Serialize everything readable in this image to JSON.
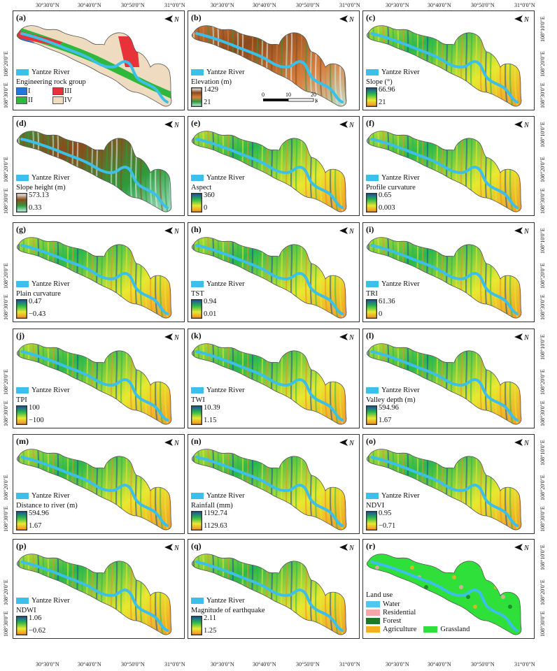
{
  "axes": {
    "top_labels": [
      "30°30'0\"N",
      "30°40'0\"N",
      "30°50'0\"N",
      "31°0'0\"N"
    ],
    "left_labels": [
      "108°10'0\"E",
      "108°20'0\"E",
      "108°30'0\"E"
    ],
    "bottom_labels": [
      "30°30'0\"N",
      "30°40'0\"N",
      "30°50'0\"N",
      "31°0'0\"N"
    ]
  },
  "river_label": "Yantze River",
  "north_label": "N",
  "colors": {
    "river": "#3cc0ea",
    "panel_border": "#333333"
  },
  "panels": [
    {
      "id": "a",
      "label": "(a)",
      "title": "Engineering rock group",
      "type": "rock",
      "classes": [
        {
          "name": "I",
          "color": "#1f78e0"
        },
        {
          "name": "III",
          "color": "#e8323a"
        },
        {
          "name": "II",
          "color": "#2fb83c"
        },
        {
          "name": "IV",
          "color": "#efdcc0"
        }
      ]
    },
    {
      "id": "b",
      "label": "(b)",
      "title": "Elevation (m)",
      "max": "1429",
      "min": "21",
      "type": "ramp",
      "ramp": [
        "#f4f4f4",
        "#8b4a1a",
        "#d88040",
        "#2e9a3c",
        "#bff2e6"
      ],
      "scale": {
        "ticks": [
          "0",
          "10",
          "20"
        ],
        "unit": "Km"
      }
    },
    {
      "id": "c",
      "label": "(c)",
      "title": "Slope (°)",
      "max": "66.96",
      "min": "21",
      "type": "ramp",
      "ramp": [
        "#1a4fa0",
        "#2bb84b",
        "#e8e830",
        "#f58a25"
      ]
    },
    {
      "id": "d",
      "label": "(d)",
      "title": "Slope height (m)",
      "max": "573.13",
      "min": "0.33",
      "type": "ramp",
      "ramp": [
        "#f2f2f2",
        "#8b4a1a",
        "#2e9a3c",
        "#bff2e6"
      ]
    },
    {
      "id": "e",
      "label": "(e)",
      "title": "Aspect",
      "max": "360",
      "min": "0",
      "type": "ramp",
      "ramp": [
        "#1a4fa0",
        "#2bb84b",
        "#e8e830",
        "#f58a25"
      ]
    },
    {
      "id": "f",
      "label": "(f)",
      "title": "Profile curvature",
      "max": "0.65",
      "min": "0.003",
      "type": "ramp",
      "ramp": [
        "#1a4fa0",
        "#2bb84b",
        "#e8e830",
        "#f58a25"
      ]
    },
    {
      "id": "g",
      "label": "(g)",
      "title": "Plain curvature",
      "max": "0.47",
      "min": "−0.43",
      "type": "ramp",
      "ramp": [
        "#1a4fa0",
        "#2bb84b",
        "#e8e830",
        "#f58a25"
      ]
    },
    {
      "id": "h",
      "label": "(h)",
      "title": "TST",
      "max": "0.94",
      "min": "0.01",
      "type": "ramp",
      "ramp": [
        "#1a4fa0",
        "#2bb84b",
        "#e8e830",
        "#f58a25"
      ]
    },
    {
      "id": "i",
      "label": "(i)",
      "title": "TRI",
      "max": "61.36",
      "min": "0",
      "type": "ramp",
      "ramp": [
        "#1a4fa0",
        "#2bb84b",
        "#e8e830",
        "#f58a25"
      ]
    },
    {
      "id": "j",
      "label": "(j)",
      "title": "TPI",
      "max": "100",
      "min": "−100",
      "type": "ramp",
      "ramp": [
        "#1a4fa0",
        "#2bb84b",
        "#e8e830",
        "#f58a25"
      ]
    },
    {
      "id": "k",
      "label": "(k)",
      "title": "TWI",
      "max": "10.39",
      "min": "1.15",
      "type": "ramp",
      "ramp": [
        "#1a4fa0",
        "#2bb84b",
        "#e8e830",
        "#f58a25"
      ]
    },
    {
      "id": "l",
      "label": "(l)",
      "title": "Valley depth (m)",
      "max": "594.96",
      "min": "1.67",
      "type": "ramp",
      "ramp": [
        "#1a4fa0",
        "#2bb84b",
        "#e8e830",
        "#f58a25"
      ]
    },
    {
      "id": "m",
      "label": "(m)",
      "title": "Distance to river (m)",
      "max": "594.96",
      "min": "1.67",
      "type": "ramp",
      "ramp": [
        "#1a4fa0",
        "#2bb84b",
        "#e8e830",
        "#f58a25"
      ]
    },
    {
      "id": "n",
      "label": "(n)",
      "title": "Rainfall (mm)",
      "max": "1192.74",
      "min": "1129.63",
      "type": "ramp",
      "ramp": [
        "#1a4fa0",
        "#2bb84b",
        "#e8e830",
        "#f58a25"
      ]
    },
    {
      "id": "o",
      "label": "(o)",
      "title": "NDVI",
      "max": "0.95",
      "min": "−0.71",
      "type": "ramp",
      "ramp": [
        "#1a4fa0",
        "#2bb84b",
        "#e8e830",
        "#f58a25"
      ]
    },
    {
      "id": "p",
      "label": "(p)",
      "title": "NDWI",
      "max": "1.06",
      "min": "−0.62",
      "type": "ramp",
      "ramp": [
        "#1a4fa0",
        "#2bb84b",
        "#e8e830",
        "#f58a25"
      ]
    },
    {
      "id": "q",
      "label": "(q)",
      "title": "Magnitude of earthquake",
      "max": "2.11",
      "min": "1.25",
      "type": "ramp",
      "ramp": [
        "#1a4fa0",
        "#2bb84b",
        "#e8e830",
        "#f58a25"
      ]
    },
    {
      "id": "r",
      "label": "(r)",
      "title": "Land use",
      "type": "landuse",
      "classes": [
        {
          "name": "Water",
          "color": "#4fc8f0"
        },
        {
          "name": "Residential",
          "color": "#f4a6a8"
        },
        {
          "name": "Forest",
          "color": "#1a7a2a"
        },
        {
          "name": "Agriculture",
          "color": "#f5b020"
        },
        {
          "name": "Grassland",
          "color": "#2fe03a"
        }
      ]
    }
  ]
}
